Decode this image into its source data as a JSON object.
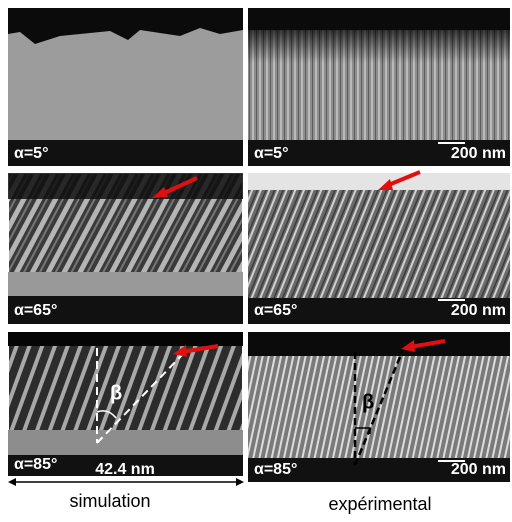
{
  "panels": [
    {
      "label": "α=5°"
    },
    {
      "label": "α=5°",
      "scale": "200 nm"
    },
    {
      "label": "α=65°"
    },
    {
      "label": "α=65°",
      "scale": "200 nm"
    },
    {
      "label": "α=85°",
      "angle": "β",
      "width": "42.4 nm"
    },
    {
      "label": "α=85°",
      "scale": "200 nm",
      "angle": "β"
    }
  ],
  "columns": [
    "simulation",
    "expérimental"
  ]
}
